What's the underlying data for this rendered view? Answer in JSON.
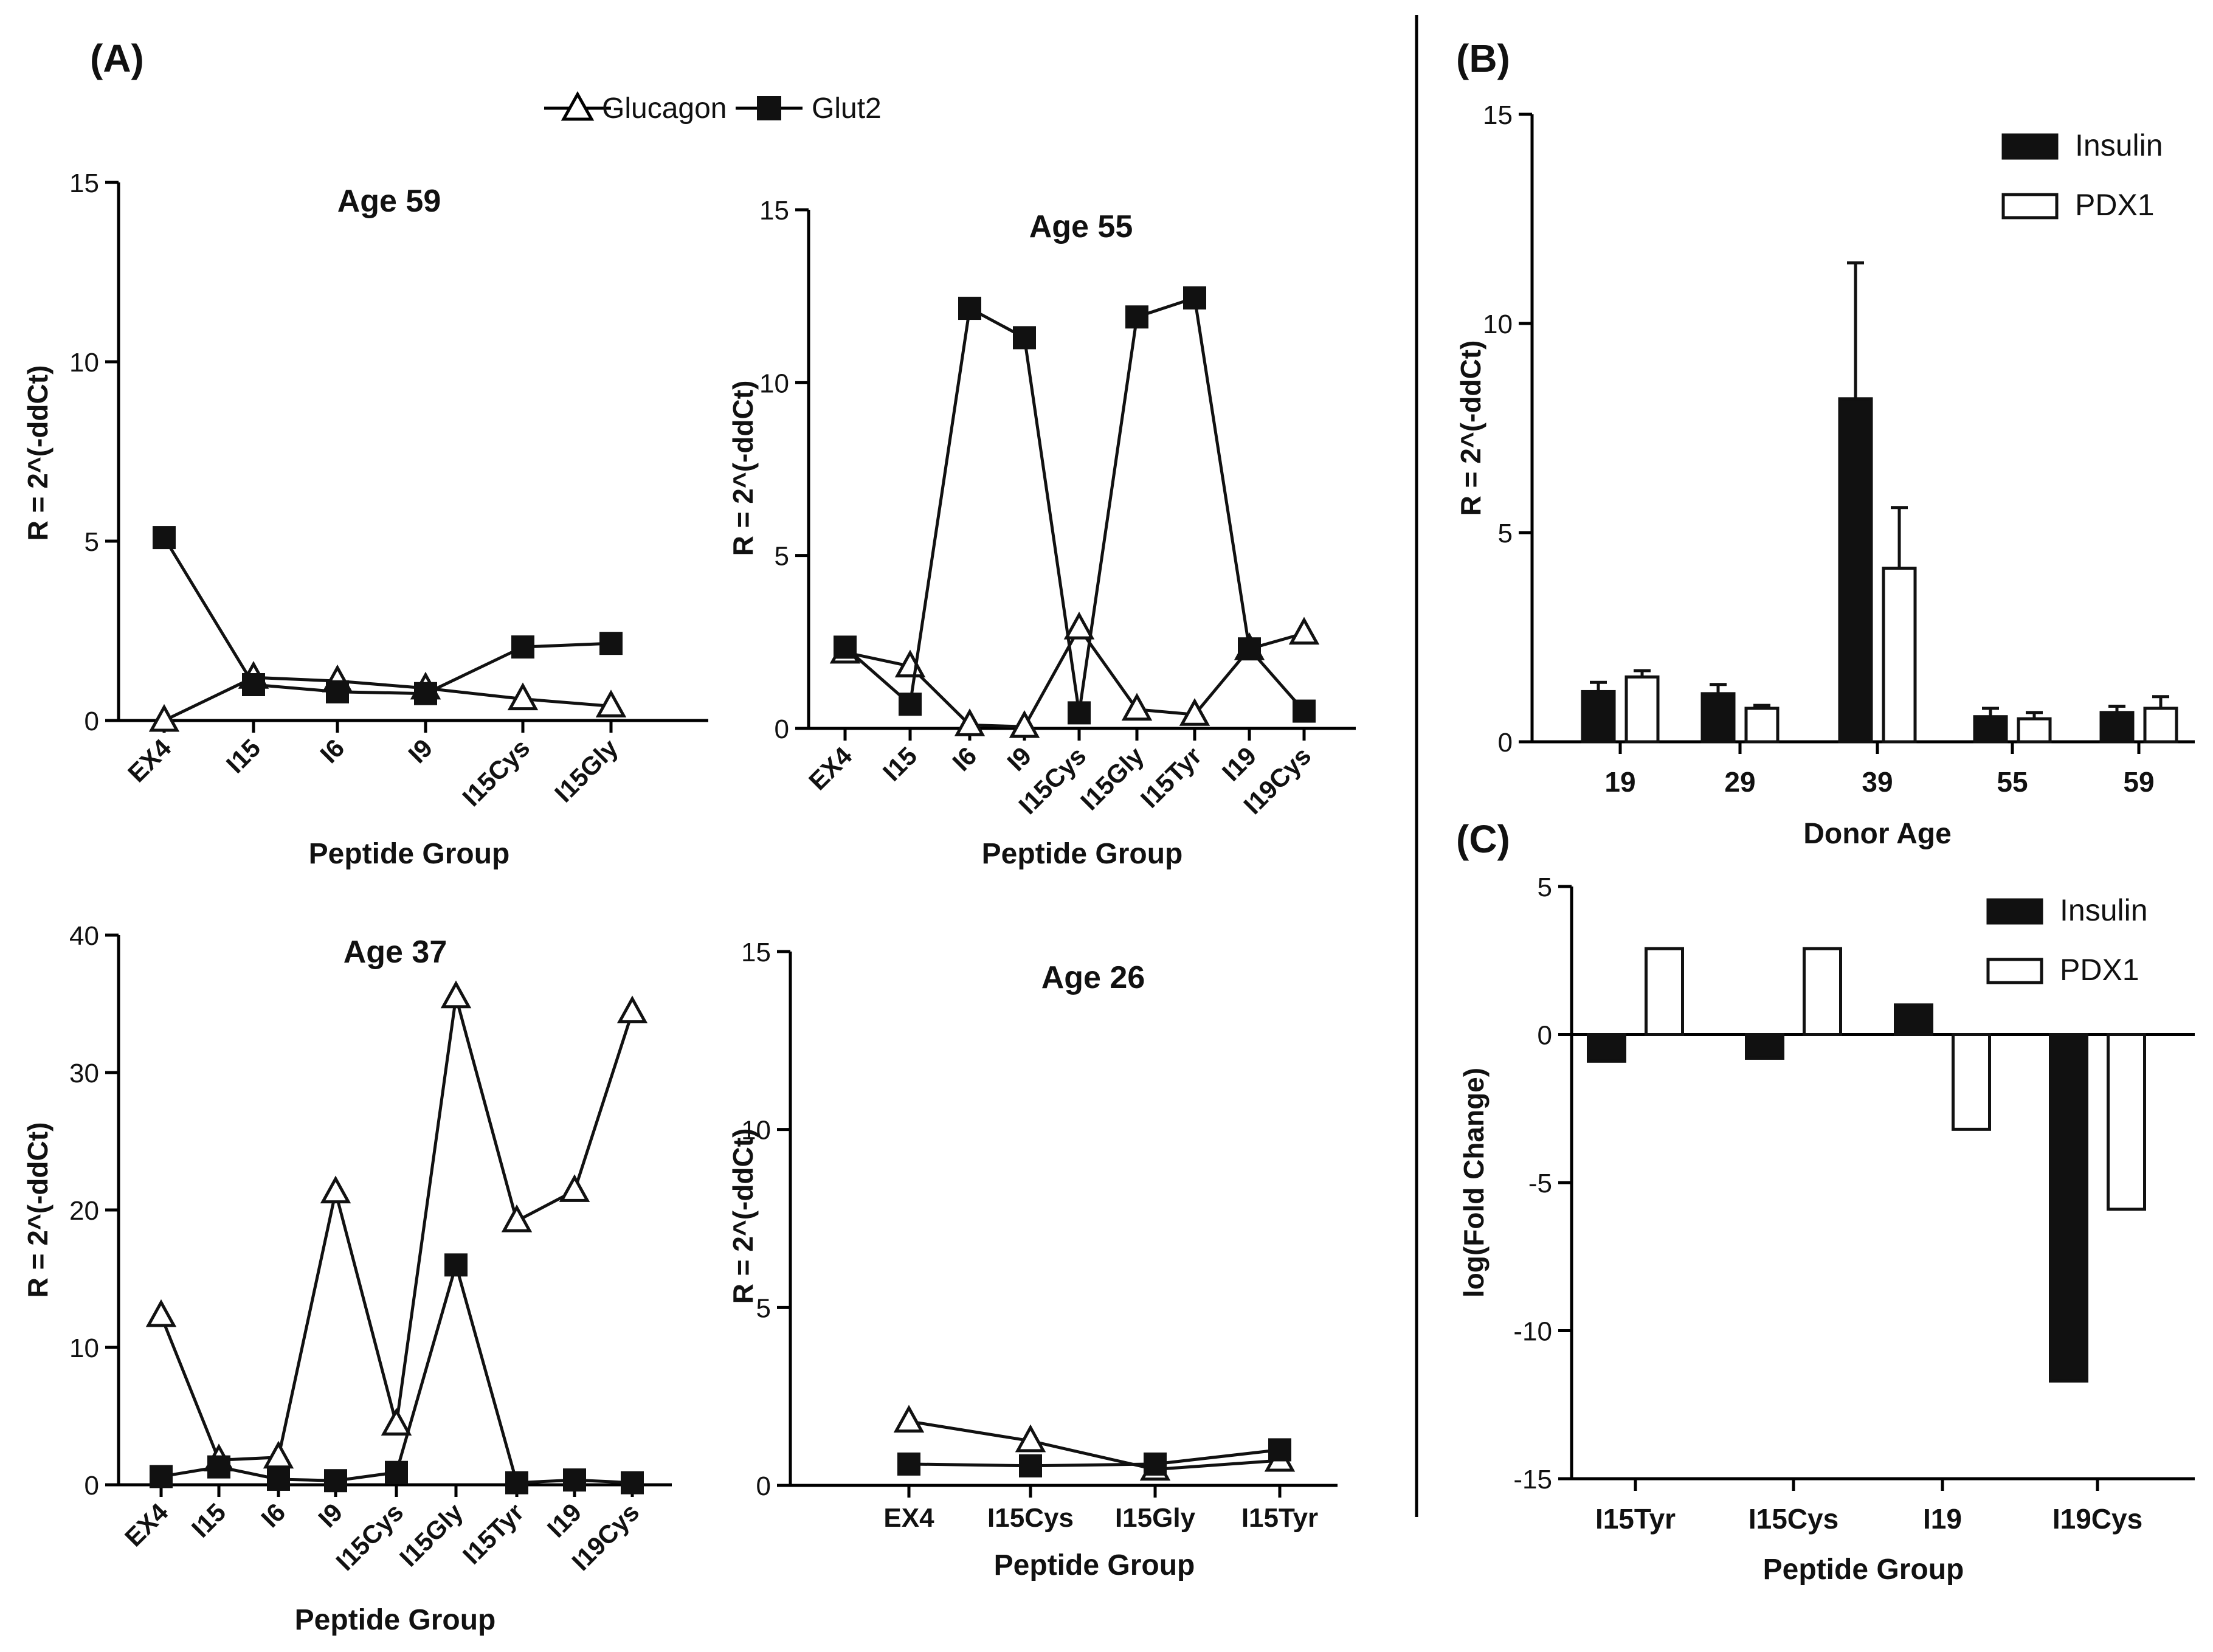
{
  "panel_labels": {
    "A": "(A)",
    "B": "(B)",
    "C": "(C)"
  },
  "legend_a": {
    "glucagon": "Glucagon",
    "glut2": "Glut2"
  },
  "chart_data": [
    {
      "id": "age59",
      "type": "line",
      "title": "Age 59",
      "xlabel": "Peptide Group",
      "ylabel": "R = 2^(-ddCt)",
      "ylim": [
        0,
        15
      ],
      "yticks": [
        "0",
        "5",
        "10",
        "15"
      ],
      "categories": [
        "EX4",
        "I15",
        "I6",
        "I9",
        "I15Cys",
        "I15Gly"
      ],
      "series": [
        {
          "key": "glucagon",
          "name": "Glucagon",
          "marker": "triangle-open",
          "values": [
            0.0,
            1.2,
            1.1,
            0.9,
            0.6,
            0.4
          ]
        },
        {
          "key": "glut2",
          "name": "Glut2",
          "marker": "square-filled",
          "values": [
            5.1,
            1.0,
            0.8,
            0.75,
            2.05,
            2.15
          ]
        }
      ]
    },
    {
      "id": "age55",
      "type": "line",
      "title": "Age 55",
      "xlabel": "Peptide Group",
      "ylabel": "R = 2^(-ddCt)",
      "ylim": [
        0,
        15
      ],
      "yticks": [
        "0",
        "5",
        "10",
        "15"
      ],
      "categories": [
        "EX4",
        "I15",
        "I6",
        "I9",
        "I15Cys",
        "I15Gly",
        "I15Tyr",
        "I19",
        "I19Cys"
      ],
      "series": [
        {
          "key": "glucagon",
          "name": "Glucagon",
          "marker": "triangle-open",
          "values": [
            2.2,
            1.8,
            0.1,
            0.05,
            2.9,
            0.55,
            0.4,
            2.3,
            2.75
          ]
        },
        {
          "key": "glut2",
          "name": "Glut2",
          "marker": "square-filled",
          "values": [
            2.35,
            0.7,
            12.15,
            11.3,
            0.45,
            11.9,
            12.45,
            2.3,
            0.5
          ]
        }
      ]
    },
    {
      "id": "age37",
      "type": "line",
      "title": "Age 37",
      "xlabel": "Peptide Group",
      "ylabel": "R = 2^(-ddCt)",
      "ylim": [
        0,
        40
      ],
      "yticks": [
        "0",
        "10",
        "20",
        "30",
        "40"
      ],
      "categories": [
        "EX4",
        "I15",
        "I6",
        "I9",
        "I15Cys",
        "I15Gly",
        "I15Tyr",
        "I19",
        "I19Cys"
      ],
      "series": [
        {
          "key": "glucagon",
          "name": "Glucagon",
          "marker": "triangle-open",
          "values": [
            12.3,
            1.8,
            2.0,
            21.3,
            4.4,
            35.5,
            19.2,
            21.4,
            34.4
          ]
        },
        {
          "key": "glut2",
          "name": "Glut2",
          "marker": "square-filled",
          "values": [
            0.6,
            1.3,
            0.4,
            0.3,
            0.9,
            16.0,
            0.15,
            0.35,
            0.15
          ]
        }
      ]
    },
    {
      "id": "age26",
      "type": "line",
      "title": "Age 26",
      "xlabel": "Peptide Group",
      "ylabel": "R = 2^(-ddCt)",
      "ylim": [
        0,
        15
      ],
      "yticks": [
        "0",
        "5",
        "10",
        "15"
      ],
      "categories": [
        "EX4",
        "I15Cys",
        "I15Gly",
        "I15Tyr"
      ],
      "series": [
        {
          "key": "glucagon",
          "name": "Glucagon",
          "marker": "triangle-open",
          "values": [
            1.8,
            1.25,
            0.45,
            0.7
          ]
        },
        {
          "key": "glut2",
          "name": "Glut2",
          "marker": "square-filled",
          "values": [
            0.6,
            0.55,
            0.6,
            1.0
          ]
        }
      ]
    },
    {
      "id": "panelB",
      "type": "bar",
      "title": "",
      "xlabel": "Donor Age",
      "ylabel": "R = 2^(-ddCt)",
      "ylim": [
        0,
        15
      ],
      "yticks": [
        "0",
        "5",
        "10",
        "15"
      ],
      "categories": [
        "19",
        "29",
        "39",
        "55",
        "59"
      ],
      "series": [
        {
          "key": "insulin",
          "name": "Insulin",
          "fill": "filled",
          "values": [
            1.2,
            1.15,
            8.2,
            0.6,
            0.7
          ],
          "errors": [
            0.22,
            0.22,
            3.25,
            0.2,
            0.15
          ]
        },
        {
          "key": "pdx1",
          "name": "PDX1",
          "fill": "open",
          "values": [
            1.55,
            0.8,
            4.15,
            0.55,
            0.8
          ],
          "errors": [
            0.15,
            0.07,
            1.45,
            0.15,
            0.28
          ]
        }
      ]
    },
    {
      "id": "panelC",
      "type": "bar",
      "title": "",
      "xlabel": "Peptide Group",
      "ylabel": "log(Fold  Change)",
      "ylim": [
        -15,
        5
      ],
      "yticks": [
        "-15",
        "-10",
        "-5",
        "0",
        "5"
      ],
      "categories": [
        "I15Tyr",
        "I15Cys",
        "I19",
        "I19Cys"
      ],
      "series": [
        {
          "key": "insulin",
          "name": "Insulin",
          "fill": "filled",
          "values": [
            -0.9,
            -0.8,
            1.0,
            -11.7
          ]
        },
        {
          "key": "pdx1",
          "name": "PDX1",
          "fill": "open",
          "values": [
            2.9,
            2.9,
            -3.2,
            -5.9
          ]
        }
      ]
    }
  ]
}
